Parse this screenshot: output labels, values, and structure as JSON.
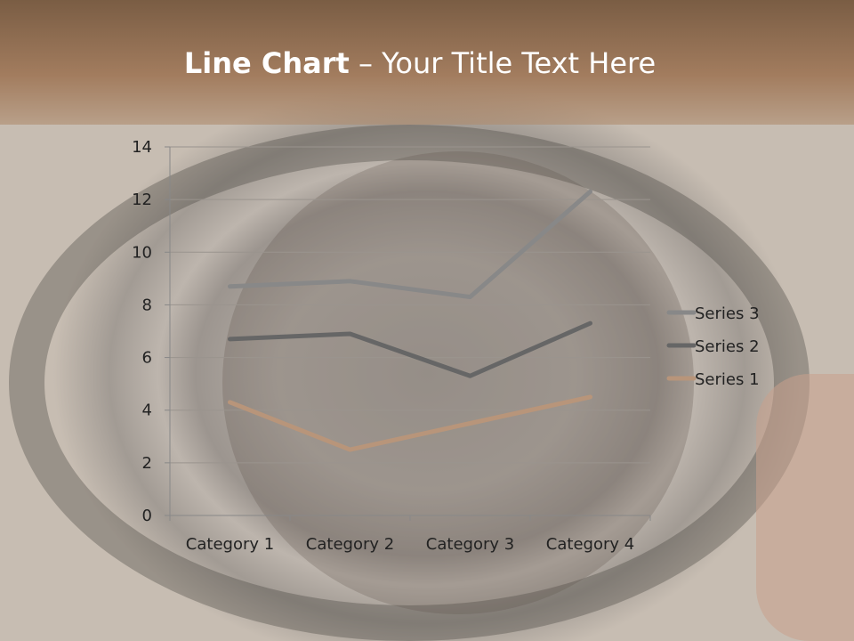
{
  "slide": {
    "title_bold": "Line Chart",
    "title_rest": " – Your Title Text Here"
  },
  "chart_data": {
    "type": "line",
    "categories": [
      "Category 1",
      "Category 2",
      "Category 3",
      "Category 4"
    ],
    "series": [
      {
        "name": "Series 1",
        "values": [
          4.3,
          2.5,
          3.5,
          4.5
        ],
        "color": "#b8957a"
      },
      {
        "name": "Series 2",
        "values": [
          6.7,
          6.9,
          5.3,
          7.3
        ],
        "color": "#666666"
      },
      {
        "name": "Series 3",
        "values": [
          8.7,
          8.9,
          8.3,
          12.3
        ],
        "color": "#888888"
      }
    ],
    "yticks": [
      0,
      2,
      4,
      6,
      8,
      10,
      12,
      14
    ],
    "ylim": [
      0,
      14
    ],
    "grid": true,
    "legend": "right"
  }
}
